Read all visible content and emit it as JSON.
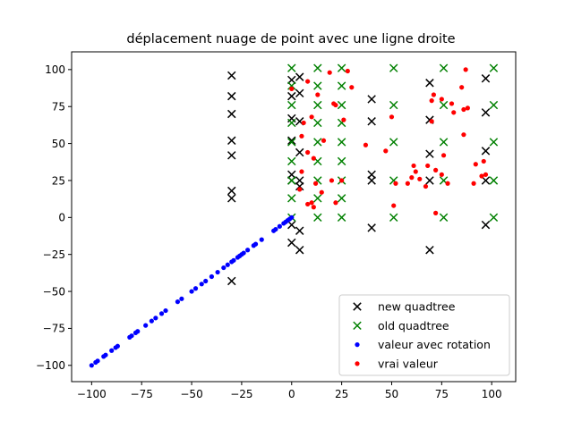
{
  "chart_data": {
    "type": "scatter",
    "title": "déplacement nuage de point avec une ligne droite",
    "xlabel": "",
    "ylabel": "",
    "xlim": [
      -110,
      112
    ],
    "ylim": [
      -111,
      112
    ],
    "xticks": [
      -100,
      -75,
      -50,
      -25,
      0,
      25,
      50,
      75,
      100
    ],
    "yticks": [
      -100,
      -75,
      -50,
      -25,
      0,
      25,
      50,
      75,
      100
    ],
    "grid": false,
    "legend_position": "lower-right",
    "series": [
      {
        "name": "new quadtree",
        "marker": "x",
        "color": "#000000",
        "points": [
          [
            -30,
            96
          ],
          [
            -30,
            82
          ],
          [
            -30,
            70
          ],
          [
            -30,
            52
          ],
          [
            -30,
            42
          ],
          [
            -30,
            18
          ],
          [
            -30,
            13
          ],
          [
            -30,
            -43
          ],
          [
            0,
            93
          ],
          [
            0,
            82
          ],
          [
            0,
            67
          ],
          [
            0,
            52
          ],
          [
            0,
            29
          ],
          [
            0,
            25
          ],
          [
            0,
            -5
          ],
          [
            0,
            -17
          ],
          [
            4,
            95
          ],
          [
            4,
            84
          ],
          [
            4,
            65
          ],
          [
            4,
            44
          ],
          [
            4,
            25
          ],
          [
            4,
            21
          ],
          [
            4,
            -9
          ],
          [
            4,
            -22
          ],
          [
            40,
            80
          ],
          [
            40,
            65
          ],
          [
            40,
            29
          ],
          [
            40,
            25
          ],
          [
            40,
            -7
          ],
          [
            69,
            91
          ],
          [
            69,
            66
          ],
          [
            69,
            43
          ],
          [
            69,
            25
          ],
          [
            69,
            -22
          ],
          [
            97,
            94
          ],
          [
            97,
            71
          ],
          [
            97,
            45
          ],
          [
            97,
            25
          ],
          [
            97,
            -5
          ]
        ]
      },
      {
        "name": "old quadtree",
        "marker": "x",
        "color": "#008000",
        "points": [
          [
            0,
            101
          ],
          [
            0,
            89
          ],
          [
            0,
            76
          ],
          [
            0,
            64
          ],
          [
            0,
            51
          ],
          [
            0,
            38
          ],
          [
            0,
            25
          ],
          [
            0,
            13
          ],
          [
            0,
            0
          ],
          [
            13,
            101
          ],
          [
            13,
            89
          ],
          [
            13,
            76
          ],
          [
            13,
            64
          ],
          [
            13,
            51
          ],
          [
            13,
            38
          ],
          [
            13,
            25
          ],
          [
            13,
            13
          ],
          [
            13,
            0
          ],
          [
            25,
            101
          ],
          [
            25,
            89
          ],
          [
            25,
            76
          ],
          [
            25,
            64
          ],
          [
            25,
            51
          ],
          [
            25,
            38
          ],
          [
            25,
            25
          ],
          [
            25,
            13
          ],
          [
            25,
            0
          ],
          [
            51,
            101
          ],
          [
            51,
            76
          ],
          [
            51,
            51
          ],
          [
            51,
            25
          ],
          [
            51,
            0
          ],
          [
            76,
            101
          ],
          [
            76,
            76
          ],
          [
            76,
            51
          ],
          [
            76,
            25
          ],
          [
            76,
            0
          ],
          [
            101,
            101
          ],
          [
            101,
            76
          ],
          [
            101,
            51
          ],
          [
            101,
            25
          ],
          [
            101,
            0
          ]
        ]
      },
      {
        "name": "valeur avec rotation",
        "marker": "dot",
        "color": "#0000ff",
        "points": [
          [
            -100,
            -100
          ],
          [
            -98,
            -98
          ],
          [
            -97,
            -97
          ],
          [
            -94,
            -94
          ],
          [
            -93,
            -93
          ],
          [
            -90,
            -90
          ],
          [
            -88,
            -88
          ],
          [
            -87,
            -87
          ],
          [
            -81,
            -81
          ],
          [
            -80,
            -80
          ],
          [
            -78,
            -78
          ],
          [
            -77,
            -77
          ],
          [
            -73,
            -73
          ],
          [
            -70,
            -70
          ],
          [
            -68,
            -68
          ],
          [
            -65,
            -65
          ],
          [
            -63,
            -63
          ],
          [
            -57,
            -57
          ],
          [
            -55,
            -55
          ],
          [
            -50,
            -50
          ],
          [
            -48,
            -48
          ],
          [
            -45,
            -45
          ],
          [
            -43,
            -43
          ],
          [
            -40,
            -40
          ],
          [
            -37,
            -37
          ],
          [
            -34,
            -34
          ],
          [
            -32,
            -32
          ],
          [
            -30,
            -30
          ],
          [
            -29,
            -29
          ],
          [
            -27,
            -27
          ],
          [
            -26,
            -26
          ],
          [
            -25,
            -25
          ],
          [
            -24,
            -24
          ],
          [
            -22,
            -22
          ],
          [
            -19,
            -19
          ],
          [
            -18,
            -18
          ],
          [
            -15,
            -15
          ],
          [
            -9,
            -9
          ],
          [
            -8,
            -8
          ],
          [
            -6,
            -6
          ],
          [
            -4,
            -4
          ],
          [
            -3,
            -3
          ],
          [
            -2,
            -2
          ],
          [
            -1,
            -1
          ],
          [
            0,
            0
          ]
        ]
      },
      {
        "name": "vrai valeur",
        "marker": "dot",
        "color": "#ff0000",
        "points": [
          [
            0,
            87
          ],
          [
            8,
            92
          ],
          [
            19,
            98
          ],
          [
            28,
            99
          ],
          [
            30,
            88
          ],
          [
            21,
            77
          ],
          [
            22,
            76
          ],
          [
            13,
            83
          ],
          [
            10,
            68
          ],
          [
            6,
            64
          ],
          [
            5,
            55
          ],
          [
            16,
            52
          ],
          [
            8,
            44
          ],
          [
            11,
            40
          ],
          [
            5,
            31
          ],
          [
            4,
            19
          ],
          [
            8,
            9
          ],
          [
            10,
            10
          ],
          [
            11,
            7
          ],
          [
            12,
            23
          ],
          [
            15,
            17
          ],
          [
            20,
            25
          ],
          [
            25,
            25
          ],
          [
            22,
            10
          ],
          [
            26,
            66
          ],
          [
            37,
            49
          ],
          [
            47,
            45
          ],
          [
            50,
            68
          ],
          [
            52,
            23
          ],
          [
            51,
            8
          ],
          [
            58,
            23
          ],
          [
            60,
            27
          ],
          [
            61,
            35
          ],
          [
            62,
            31
          ],
          [
            64,
            26
          ],
          [
            67,
            21
          ],
          [
            68,
            35
          ],
          [
            70,
            65
          ],
          [
            70,
            79
          ],
          [
            71,
            83
          ],
          [
            72,
            32
          ],
          [
            72,
            3
          ],
          [
            75,
            80
          ],
          [
            75,
            29
          ],
          [
            76,
            42
          ],
          [
            78,
            23
          ],
          [
            80,
            77
          ],
          [
            81,
            71
          ],
          [
            85,
            88
          ],
          [
            86,
            73
          ],
          [
            88,
            74
          ],
          [
            86,
            56
          ],
          [
            87,
            100
          ],
          [
            92,
            36
          ],
          [
            95,
            28
          ],
          [
            96,
            38
          ],
          [
            97,
            29
          ],
          [
            91,
            23
          ]
        ]
      }
    ]
  }
}
